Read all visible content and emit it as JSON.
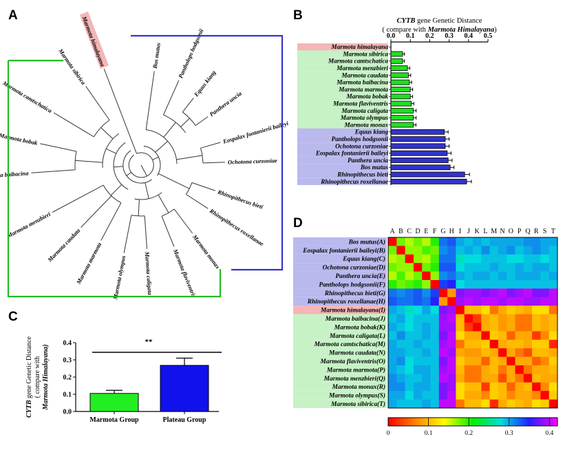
{
  "panel_labels": {
    "a": "A",
    "b": "B",
    "c": "C",
    "d": "D"
  },
  "chart_data": [
    {
      "panel": "A",
      "type": "other",
      "description_kind": "circular phylogenetic tree",
      "leaves": [
        "Marmota himalayana",
        "Bos mutus",
        "Pantholops hodgsonii",
        "Equus kiang",
        "Panthera uncia",
        "Eospalax fontanierii baileyi",
        "Ochotona curzoniae",
        "Rhinopithecus bieti",
        "Rhinopithecus roxellanae",
        "Marmota monax",
        "Marmota flaviventris",
        "Marmota caligata",
        "Marmota olympus",
        "Marmota marmota",
        "Marmota caudata",
        "Marmota menzbieri",
        "Marmota baibacina",
        "Marmota bobak",
        "Marmota camtschatica",
        "Marmota sibirica"
      ],
      "highlight": "Marmota himalayana",
      "colors": {
        "marmota_group": "#22bb22",
        "plateau_group": "#3333cc",
        "highlight": "#f4b6b6"
      }
    },
    {
      "panel": "B",
      "type": "bar",
      "orientation": "horizontal",
      "title_gene": "CYTB",
      "title_rest": " gene Genetic Distance",
      "subtitle_prefix": "( compare with ",
      "subtitle_species": "Marmota Himalayana",
      "subtitle_suffix": ")",
      "xlim": [
        0,
        0.5
      ],
      "xticks": [
        "0.0",
        "0.1",
        "0.2",
        "0.3",
        "0.4",
        "0.5"
      ],
      "categories": [
        "Marmota himalayana",
        "Marmota sibirica",
        "Marmota camtschatica",
        "Marmota menzbieri",
        "Marmota caudata",
        "Marmota baibacina",
        "Marmota marmota",
        "Marmota bobak",
        "Marmota flaviventris",
        "Marmota caligata",
        "Marmota olympus",
        "Marmota monax",
        "Equus kiang",
        "Pantholops hodgsonii",
        "Ochotona curzoniae",
        "Eospalax fontanierii baileyi",
        "Panthera uncia",
        "Bos mutus",
        "Rhinopithecus bieti",
        "Rhinopithecus roxellanae"
      ],
      "values": [
        0,
        0.06,
        0.06,
        0.085,
        0.09,
        0.095,
        0.1,
        0.1,
        0.105,
        0.115,
        0.115,
        0.115,
        0.275,
        0.28,
        0.28,
        0.29,
        0.295,
        0.305,
        0.38,
        0.39
      ],
      "errors": [
        0,
        0.01,
        0.01,
        0.012,
        0.012,
        0.012,
        0.012,
        0.012,
        0.013,
        0.015,
        0.015,
        0.014,
        0.02,
        0.02,
        0.02,
        0.02,
        0.02,
        0.02,
        0.025,
        0.025
      ],
      "groups": [
        "highlight",
        "marmota",
        "marmota",
        "marmota",
        "marmota",
        "marmota",
        "marmota",
        "marmota",
        "marmota",
        "marmota",
        "marmota",
        "marmota",
        "plateau",
        "plateau",
        "plateau",
        "plateau",
        "plateau",
        "plateau",
        "plateau",
        "plateau"
      ],
      "colors": {
        "marmota": "#22dd22",
        "plateau": "#3333cc",
        "marmota_bg": "#c6f2c6",
        "plateau_bg": "#b9b9ee",
        "highlight_bg": "#f4b6b6"
      }
    },
    {
      "panel": "C",
      "type": "bar",
      "ylabel_gene": "CYTB",
      "ylabel_line1_rest": " gene Genetic Distance",
      "ylabel_line2": "( compare with",
      "ylabel_line3": "Marmota Himalayana)",
      "ylim": [
        0,
        0.4
      ],
      "yticks": [
        "0.0",
        "0.1",
        "0.2",
        "0.3",
        "0.4"
      ],
      "categories": [
        "Marmota Group",
        "Plateau Group"
      ],
      "values": [
        0.105,
        0.268
      ],
      "errors": [
        0.018,
        0.042
      ],
      "colors": [
        "#22ee22",
        "#1111ee"
      ],
      "annotation": "**"
    },
    {
      "panel": "D",
      "type": "heatmap",
      "col_labels": [
        "A",
        "B",
        "C",
        "D",
        "E",
        "F",
        "G",
        "H",
        "I",
        "J",
        "K",
        "L",
        "M",
        "N",
        "O",
        "P",
        "Q",
        "R",
        "S",
        "T"
      ],
      "row_labels": [
        "Bos mutus(A)",
        "Eospalax fontanierii baileyi(B)",
        "Equus kiang(C)",
        "Ochotona curzoniae(D)",
        "Panthera uncia(E)",
        "Pantholops hodgsonii(F)",
        "Rhinopithecus bieti(G)",
        "Rhinopithecus roxellanae(H)",
        "Marmota himalayana(I)",
        "Marmota baibacina(J)",
        "Marmota bobak(K)",
        "Marmota caligata(L)",
        "Marmota camtschatica(M)",
        "Marmota caudata(N)",
        "Marmota flaviventris(O)",
        "Marmota marmota(P)",
        "Marmota menzbieri(Q)",
        "Marmota monax(R)",
        "Marmota olympus(S)",
        "Marmota sibirica(T)"
      ],
      "colorbar_ticks": [
        "0",
        "0.1",
        "0.2",
        "0.3",
        "0.4"
      ],
      "value_range": [
        0,
        0.42
      ],
      "colorscale": [
        "#ff0000",
        "#ff8800",
        "#ffff00",
        "#00ee00",
        "#00dddd",
        "#2222ff",
        "#ff00ff"
      ],
      "row_group_colors": {
        "plateau": "#b9b9ee",
        "highlight": "#f4b6b6",
        "marmota": "#c6f2c6"
      },
      "values": [
        [
          0.0,
          0.18,
          0.16,
          0.18,
          0.16,
          0.2,
          0.32,
          0.33,
          0.3,
          0.29,
          0.3,
          0.29,
          0.3,
          0.3,
          0.3,
          0.3,
          0.31,
          0.31,
          0.3,
          0.3
        ],
        [
          0.18,
          0.0,
          0.17,
          0.17,
          0.19,
          0.18,
          0.31,
          0.32,
          0.29,
          0.3,
          0.29,
          0.31,
          0.29,
          0.3,
          0.31,
          0.29,
          0.3,
          0.31,
          0.3,
          0.29
        ],
        [
          0.16,
          0.17,
          0.0,
          0.17,
          0.16,
          0.19,
          0.32,
          0.32,
          0.27,
          0.28,
          0.28,
          0.29,
          0.29,
          0.29,
          0.28,
          0.28,
          0.29,
          0.29,
          0.28,
          0.29
        ],
        [
          0.18,
          0.17,
          0.17,
          0.0,
          0.18,
          0.2,
          0.33,
          0.33,
          0.28,
          0.29,
          0.29,
          0.29,
          0.3,
          0.29,
          0.29,
          0.3,
          0.29,
          0.3,
          0.3,
          0.29
        ],
        [
          0.16,
          0.19,
          0.16,
          0.18,
          0.0,
          0.17,
          0.31,
          0.32,
          0.3,
          0.29,
          0.3,
          0.3,
          0.29,
          0.3,
          0.29,
          0.3,
          0.3,
          0.3,
          0.29,
          0.3
        ],
        [
          0.2,
          0.18,
          0.19,
          0.2,
          0.17,
          0.0,
          0.34,
          0.35,
          0.28,
          0.29,
          0.29,
          0.29,
          0.29,
          0.29,
          0.29,
          0.29,
          0.29,
          0.29,
          0.29,
          0.29
        ],
        [
          0.32,
          0.31,
          0.32,
          0.33,
          0.31,
          0.34,
          0.0,
          0.08,
          0.38,
          0.39,
          0.39,
          0.38,
          0.39,
          0.4,
          0.38,
          0.39,
          0.4,
          0.38,
          0.38,
          0.4
        ],
        [
          0.33,
          0.32,
          0.32,
          0.33,
          0.32,
          0.35,
          0.08,
          0.0,
          0.39,
          0.4,
          0.39,
          0.4,
          0.4,
          0.39,
          0.4,
          0.4,
          0.39,
          0.39,
          0.4,
          0.4
        ],
        [
          0.3,
          0.29,
          0.27,
          0.28,
          0.3,
          0.28,
          0.38,
          0.39,
          0.0,
          0.1,
          0.1,
          0.12,
          0.06,
          0.09,
          0.11,
          0.1,
          0.09,
          0.12,
          0.12,
          0.06
        ],
        [
          0.29,
          0.3,
          0.28,
          0.29,
          0.29,
          0.29,
          0.39,
          0.4,
          0.1,
          0.0,
          0.03,
          0.09,
          0.1,
          0.08,
          0.09,
          0.06,
          0.06,
          0.1,
          0.09,
          0.1
        ],
        [
          0.3,
          0.29,
          0.28,
          0.29,
          0.3,
          0.29,
          0.39,
          0.39,
          0.1,
          0.03,
          0.0,
          0.09,
          0.1,
          0.08,
          0.09,
          0.06,
          0.06,
          0.1,
          0.09,
          0.1
        ],
        [
          0.29,
          0.31,
          0.29,
          0.29,
          0.3,
          0.29,
          0.38,
          0.4,
          0.12,
          0.09,
          0.09,
          0.0,
          0.11,
          0.1,
          0.05,
          0.09,
          0.09,
          0.03,
          0.07,
          0.12
        ],
        [
          0.3,
          0.29,
          0.29,
          0.3,
          0.29,
          0.29,
          0.39,
          0.4,
          0.06,
          0.1,
          0.1,
          0.11,
          0.0,
          0.09,
          0.1,
          0.1,
          0.09,
          0.11,
          0.11,
          0.02
        ],
        [
          0.3,
          0.3,
          0.29,
          0.29,
          0.3,
          0.29,
          0.4,
          0.39,
          0.09,
          0.08,
          0.08,
          0.1,
          0.09,
          0.0,
          0.09,
          0.06,
          0.04,
          0.1,
          0.1,
          0.09
        ],
        [
          0.3,
          0.31,
          0.28,
          0.29,
          0.29,
          0.29,
          0.38,
          0.4,
          0.11,
          0.09,
          0.09,
          0.05,
          0.1,
          0.09,
          0.0,
          0.09,
          0.09,
          0.05,
          0.07,
          0.11
        ],
        [
          0.3,
          0.29,
          0.28,
          0.3,
          0.3,
          0.29,
          0.39,
          0.4,
          0.1,
          0.06,
          0.06,
          0.09,
          0.1,
          0.06,
          0.09,
          0.0,
          0.06,
          0.09,
          0.09,
          0.1
        ],
        [
          0.31,
          0.3,
          0.29,
          0.29,
          0.3,
          0.29,
          0.4,
          0.39,
          0.09,
          0.06,
          0.06,
          0.09,
          0.09,
          0.04,
          0.09,
          0.06,
          0.0,
          0.1,
          0.09,
          0.09
        ],
        [
          0.31,
          0.31,
          0.29,
          0.3,
          0.3,
          0.29,
          0.38,
          0.39,
          0.12,
          0.1,
          0.1,
          0.03,
          0.11,
          0.1,
          0.05,
          0.09,
          0.1,
          0.0,
          0.07,
          0.12
        ],
        [
          0.3,
          0.3,
          0.28,
          0.3,
          0.29,
          0.29,
          0.38,
          0.4,
          0.12,
          0.09,
          0.09,
          0.07,
          0.11,
          0.1,
          0.07,
          0.09,
          0.09,
          0.07,
          0.0,
          0.11
        ],
        [
          0.3,
          0.29,
          0.29,
          0.29,
          0.3,
          0.29,
          0.4,
          0.4,
          0.06,
          0.1,
          0.1,
          0.12,
          0.02,
          0.09,
          0.11,
          0.1,
          0.09,
          0.12,
          0.11,
          0.0
        ]
      ]
    }
  ]
}
